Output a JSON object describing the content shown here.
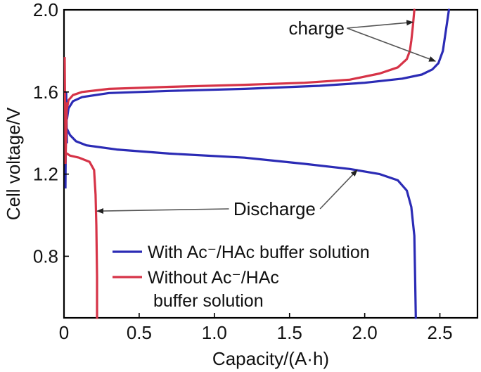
{
  "chart_data": {
    "type": "line",
    "xlabel": "Capacity/(A·h)",
    "ylabel": "Cell voltage/V",
    "xlim": [
      0,
      2.75
    ],
    "ylim": [
      0.5,
      2.0
    ],
    "xticks": [
      "0",
      "0.5",
      "1.0",
      "1.5",
      "2.0",
      "2.5"
    ],
    "yticks": [
      "0.8",
      "1.2",
      "1.6",
      "2.0"
    ],
    "grid": false,
    "legend_position": "lower-center",
    "series": [
      {
        "name": "With Ac⁻/HAc buffer solution",
        "color": "#2b2bb5",
        "charge": {
          "x": [
            0.02,
            0.03,
            0.06,
            0.12,
            0.3,
            0.7,
            1.2,
            1.7,
            2.0,
            2.25,
            2.38,
            2.45,
            2.49,
            2.52,
            2.54,
            2.56
          ],
          "y": [
            1.47,
            1.52,
            1.555,
            1.575,
            1.595,
            1.605,
            1.615,
            1.63,
            1.645,
            1.665,
            1.685,
            1.71,
            1.74,
            1.8,
            1.9,
            2.0
          ]
        },
        "discharge": {
          "x": [
            0.02,
            0.04,
            0.08,
            0.15,
            0.35,
            0.7,
            1.2,
            1.6,
            1.9,
            2.1,
            2.22,
            2.28,
            2.31,
            2.33,
            2.335,
            2.34
          ],
          "y": [
            1.42,
            1.39,
            1.36,
            1.34,
            1.32,
            1.3,
            1.28,
            1.25,
            1.225,
            1.2,
            1.17,
            1.12,
            1.04,
            0.9,
            0.7,
            0.5
          ]
        }
      },
      {
        "name": "Without Ac⁻/HAc buffer solution",
        "color": "#d63347",
        "charge": {
          "x": [
            0.02,
            0.03,
            0.06,
            0.12,
            0.3,
            0.7,
            1.2,
            1.6,
            1.9,
            2.1,
            2.22,
            2.28,
            2.3,
            2.31,
            2.32,
            2.33
          ],
          "y": [
            1.52,
            1.56,
            1.585,
            1.6,
            1.615,
            1.625,
            1.635,
            1.645,
            1.66,
            1.69,
            1.72,
            1.76,
            1.8,
            1.85,
            1.92,
            2.0
          ]
        },
        "discharge": {
          "x": [
            0.02,
            0.04,
            0.1,
            0.17,
            0.2,
            0.21,
            0.215,
            0.22,
            0.22
          ],
          "y": [
            1.3,
            1.29,
            1.28,
            1.26,
            1.22,
            1.1,
            0.95,
            0.7,
            0.5
          ]
        }
      }
    ],
    "annotations": [
      {
        "text": "charge",
        "anchor": [
          1.68,
          1.88
        ],
        "targets": [
          [
            2.32,
            1.94
          ],
          [
            2.47,
            1.75
          ]
        ]
      },
      {
        "text": "Discharge",
        "anchor": [
          1.4,
          1.0
        ],
        "targets": [
          [
            1.95,
            1.22
          ],
          [
            0.22,
            1.02
          ]
        ]
      }
    ],
    "legend": [
      {
        "label": "With Ac⁻/HAc buffer solution",
        "color": "#2b2bb5"
      },
      {
        "label_lines": [
          "Without Ac⁻/HAc",
          "buffer solution"
        ],
        "color": "#d63347"
      }
    ]
  }
}
